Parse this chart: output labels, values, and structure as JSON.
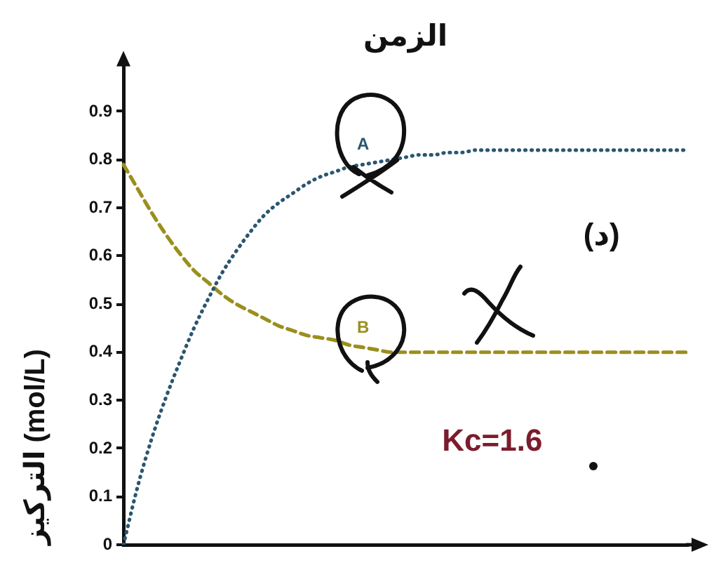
{
  "chart_data": {
    "type": "line",
    "title": "الزمن",
    "ylabel": "التركيز (mol/L)",
    "categories": [
      null,
      null,
      null,
      null,
      null,
      null,
      null,
      null,
      null,
      null,
      null,
      null,
      null,
      null,
      null,
      null,
      null,
      null,
      null,
      null,
      null,
      null,
      null,
      null,
      null,
      null,
      null,
      null,
      null,
      null,
      null,
      null,
      null,
      null,
      null,
      null,
      null,
      null,
      null,
      null,
      null
    ],
    "series": [
      {
        "name": "A",
        "color": "#2a5670",
        "line_style": "dotted",
        "values": [
          0,
          0.12,
          0.22,
          0.305,
          0.38,
          0.45,
          0.51,
          0.565,
          0.61,
          0.65,
          0.685,
          0.71,
          0.73,
          0.75,
          0.765,
          0.775,
          0.785,
          0.79,
          0.795,
          0.8,
          0.805,
          0.81,
          0.81,
          0.815,
          0.815,
          0.82,
          0.82,
          0.82,
          0.82,
          0.82,
          0.82,
          0.82,
          0.82,
          0.82,
          0.82,
          0.82,
          0.82,
          0.82,
          0.82,
          0.82,
          0.82
        ]
      },
      {
        "name": "B",
        "color": "#9a8f1e",
        "line_style": "dashed",
        "values": [
          0.79,
          0.74,
          0.69,
          0.645,
          0.605,
          0.57,
          0.545,
          0.52,
          0.5,
          0.485,
          0.47,
          0.455,
          0.445,
          0.435,
          0.43,
          0.425,
          0.415,
          0.41,
          0.405,
          0.4,
          0.4,
          0.4,
          0.4,
          0.4,
          0.4,
          0.4,
          0.4,
          0.4,
          0.4,
          0.4,
          0.4,
          0.4,
          0.4,
          0.4,
          0.4,
          0.4,
          0.4,
          0.4,
          0.4,
          0.4,
          0.4
        ]
      }
    ],
    "ylim": [
      0,
      1
    ],
    "yticks": [
      0,
      0.1,
      0.2,
      0.3,
      0.4,
      0.5,
      0.6,
      0.7,
      0.8,
      0.9
    ],
    "grid": false,
    "legend": false,
    "marker": "none",
    "annotations": [
      "(د)",
      "Kc=1.6"
    ]
  }
}
